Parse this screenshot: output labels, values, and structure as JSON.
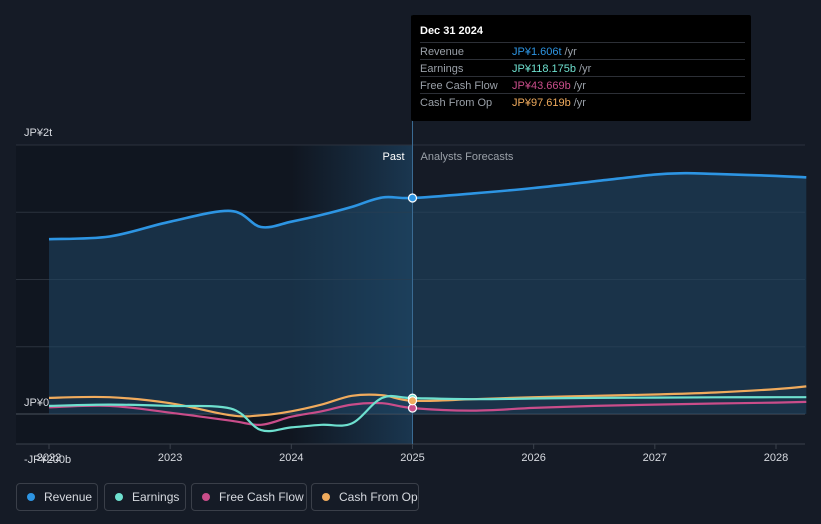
{
  "chart_data": {
    "type": "line",
    "y_axis_labels": {
      "top": "JP¥2t",
      "zero": "JP¥0",
      "bottom": "-JP¥200b"
    },
    "ylim": [
      -200,
      2000
    ],
    "ylim_units": "JP¥ billions",
    "x_ticks": [
      "2022",
      "2023",
      "2024",
      "2025",
      "2026",
      "2027",
      "2028"
    ],
    "xlim": [
      2022.0,
      2028.25
    ],
    "past_label": "Past",
    "forecast_label": "Analysts Forecasts",
    "divider_x": 2025.0,
    "series": [
      {
        "name": "Revenue",
        "color": "#2d95e3",
        "points": [
          [
            2022.0,
            1300
          ],
          [
            2022.5,
            1320
          ],
          [
            2023.0,
            1430
          ],
          [
            2023.5,
            1510
          ],
          [
            2023.75,
            1390
          ],
          [
            2024.0,
            1430
          ],
          [
            2024.25,
            1480
          ],
          [
            2024.5,
            1540
          ],
          [
            2024.75,
            1610
          ],
          [
            2025.0,
            1606
          ],
          [
            2025.5,
            1640
          ],
          [
            2026.0,
            1680
          ],
          [
            2026.5,
            1730
          ],
          [
            2027.0,
            1780
          ],
          [
            2027.25,
            1790
          ],
          [
            2027.5,
            1785
          ],
          [
            2028.0,
            1770
          ],
          [
            2028.25,
            1760
          ]
        ]
      },
      {
        "name": "Earnings",
        "color": "#6ee0cf",
        "points": [
          [
            2022.0,
            60
          ],
          [
            2022.5,
            70
          ],
          [
            2023.0,
            60
          ],
          [
            2023.5,
            40
          ],
          [
            2023.75,
            -120
          ],
          [
            2024.0,
            -100
          ],
          [
            2024.25,
            -80
          ],
          [
            2024.5,
            -70
          ],
          [
            2024.75,
            120
          ],
          [
            2025.0,
            118
          ],
          [
            2025.5,
            110
          ],
          [
            2026.0,
            115
          ],
          [
            2026.5,
            120
          ],
          [
            2027.0,
            122
          ],
          [
            2027.5,
            124
          ],
          [
            2028.0,
            125
          ],
          [
            2028.25,
            125
          ]
        ]
      },
      {
        "name": "Free Cash Flow",
        "color": "#c94d8a",
        "points": [
          [
            2022.0,
            50
          ],
          [
            2022.5,
            60
          ],
          [
            2023.0,
            10
          ],
          [
            2023.5,
            -50
          ],
          [
            2023.75,
            -80
          ],
          [
            2024.0,
            -20
          ],
          [
            2024.25,
            20
          ],
          [
            2024.5,
            70
          ],
          [
            2024.75,
            80
          ],
          [
            2025.0,
            44
          ],
          [
            2025.5,
            25
          ],
          [
            2026.0,
            45
          ],
          [
            2026.5,
            60
          ],
          [
            2027.0,
            70
          ],
          [
            2027.5,
            78
          ],
          [
            2028.0,
            85
          ],
          [
            2028.25,
            90
          ]
        ]
      },
      {
        "name": "Cash From Op",
        "color": "#f0ab5d",
        "points": [
          [
            2022.0,
            120
          ],
          [
            2022.5,
            125
          ],
          [
            2023.0,
            80
          ],
          [
            2023.5,
            -10
          ],
          [
            2023.75,
            -10
          ],
          [
            2024.0,
            20
          ],
          [
            2024.25,
            70
          ],
          [
            2024.5,
            135
          ],
          [
            2024.75,
            140
          ],
          [
            2025.0,
            98
          ],
          [
            2025.5,
            110
          ],
          [
            2026.0,
            125
          ],
          [
            2026.5,
            135
          ],
          [
            2027.0,
            145
          ],
          [
            2027.5,
            160
          ],
          [
            2028.0,
            185
          ],
          [
            2028.25,
            205
          ]
        ]
      }
    ]
  },
  "tooltip": {
    "date": "Dec 31 2024",
    "rows": [
      {
        "label": "Revenue",
        "value": "JP¥1.606t",
        "unit": "/yr",
        "color": "#2d95e3"
      },
      {
        "label": "Earnings",
        "value": "JP¥118.175b",
        "unit": "/yr",
        "color": "#6ee0cf"
      },
      {
        "label": "Free Cash Flow",
        "value": "JP¥43.669b",
        "unit": "/yr",
        "color": "#c94d8a"
      },
      {
        "label": "Cash From Op",
        "value": "JP¥97.619b",
        "unit": "/yr",
        "color": "#f0ab5d"
      }
    ]
  },
  "legend": [
    {
      "label": "Revenue",
      "color": "#2d95e3"
    },
    {
      "label": "Earnings",
      "color": "#6ee0cf"
    },
    {
      "label": "Free Cash Flow",
      "color": "#c94d8a"
    },
    {
      "label": "Cash From Op",
      "color": "#f0ab5d"
    }
  ]
}
